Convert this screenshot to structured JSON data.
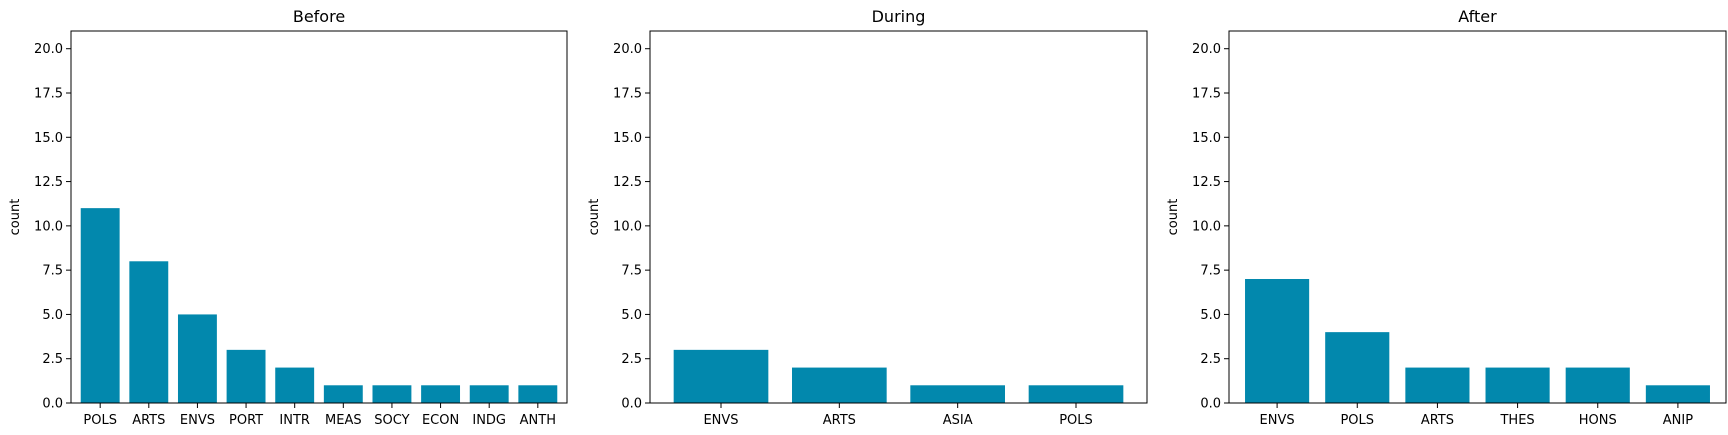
{
  "chart_data": [
    {
      "type": "bar",
      "title": "Before",
      "xlabel": "",
      "ylabel": "count",
      "ylim": [
        0,
        21
      ],
      "yticks": [
        "0.0",
        "2.5",
        "5.0",
        "7.5",
        "10.0",
        "12.5",
        "15.0",
        "17.5",
        "20.0"
      ],
      "categories": [
        "POLS",
        "ARTS",
        "ENVS",
        "PORT",
        "INTR",
        "MEAS",
        "SOCY",
        "ECON",
        "INDG",
        "ANTH"
      ],
      "values": [
        11,
        8,
        5,
        3,
        2,
        1,
        1,
        1,
        1,
        1
      ],
      "color": "#0288ad",
      "grid": false
    },
    {
      "type": "bar",
      "title": "During",
      "xlabel": "",
      "ylabel": "count",
      "ylim": [
        0,
        21
      ],
      "yticks": [
        "0.0",
        "2.5",
        "5.0",
        "7.5",
        "10.0",
        "12.5",
        "15.0",
        "17.5",
        "20.0"
      ],
      "categories": [
        "ENVS",
        "ARTS",
        "ASIA",
        "POLS"
      ],
      "values": [
        3,
        2,
        1,
        1
      ],
      "color": "#0288ad",
      "grid": false
    },
    {
      "type": "bar",
      "title": "After",
      "xlabel": "",
      "ylabel": "count",
      "ylim": [
        0,
        21
      ],
      "yticks": [
        "0.0",
        "2.5",
        "5.0",
        "7.5",
        "10.0",
        "12.5",
        "15.0",
        "17.5",
        "20.0"
      ],
      "categories": [
        "ENVS",
        "POLS",
        "ARTS",
        "THES",
        "HONS",
        "ANIP"
      ],
      "values": [
        7,
        4,
        2,
        2,
        2,
        1
      ],
      "color": "#0288ad",
      "grid": false
    }
  ]
}
